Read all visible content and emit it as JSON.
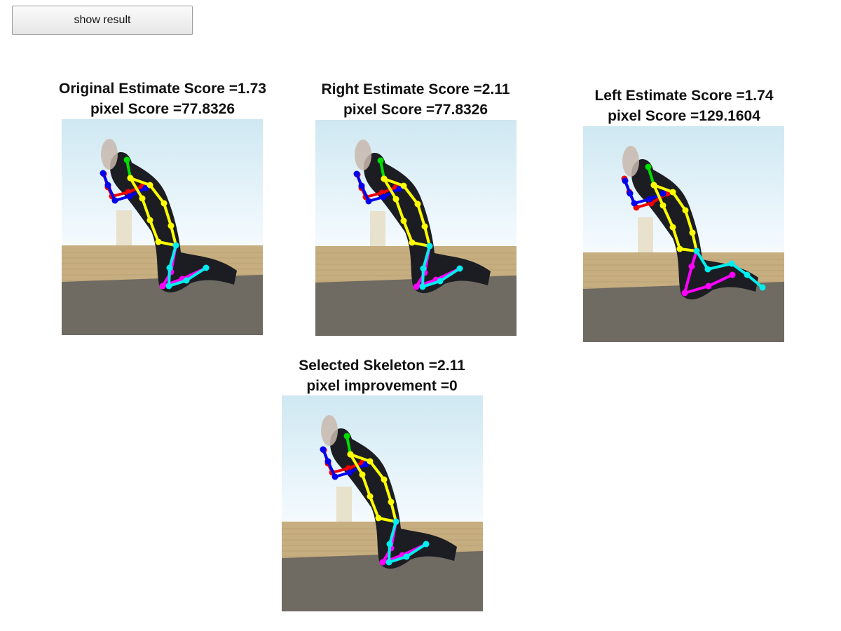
{
  "button": {
    "label": "show result"
  },
  "colors": {
    "head": "#00dd00",
    "right_arm": "#ee0000",
    "left_arm": "#0000ee",
    "torso": "#ffff00",
    "right_leg": "#ff00ff",
    "left_leg": "#00eeee"
  },
  "panels": [
    {
      "id": "original",
      "line1": "Original Estimate Score =1.73",
      "line2": "pixel Score =77.8326"
    },
    {
      "id": "right",
      "line1": "Right Estimate Score =2.11",
      "line2": "pixel Score =77.8326"
    },
    {
      "id": "left",
      "line1": "Left Estimate Score =1.74",
      "line2": "pixel Score =129.1604"
    },
    {
      "id": "selected",
      "line1": "Selected Skeleton =2.11",
      "line2": "pixel improvement =0"
    }
  ]
}
